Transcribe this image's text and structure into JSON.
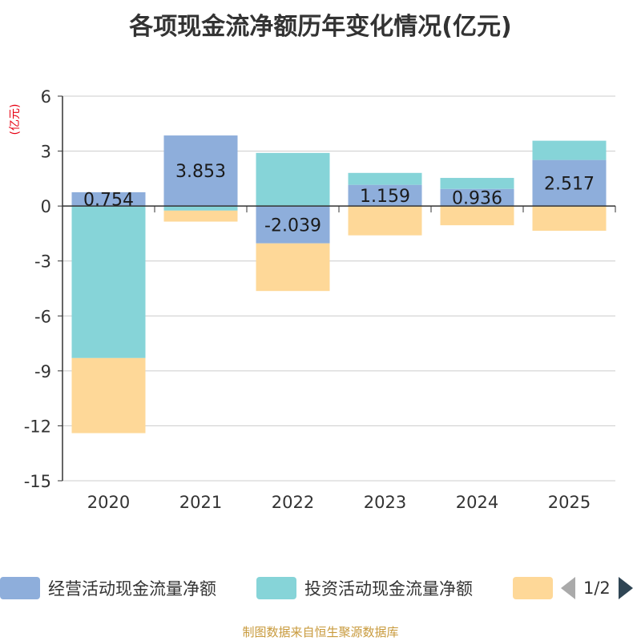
{
  "chart_data": {
    "type": "bar",
    "stacked": true,
    "title": "各项现金流净额历年变化情况(亿元)",
    "ylabel": "(亿元)",
    "xlabel": "",
    "categories": [
      "2020",
      "2021",
      "2022",
      "2023",
      "2024",
      "2025"
    ],
    "ylim": [
      -15,
      6
    ],
    "yticks": [
      6,
      3,
      0,
      -3,
      -6,
      -9,
      -12,
      -15
    ],
    "grid": true,
    "series": [
      {
        "name": "经营活动现金流量净额",
        "color": "#8eaedb",
        "values": [
          0.754,
          3.853,
          -2.039,
          1.159,
          0.936,
          2.517
        ],
        "show_labels": true
      },
      {
        "name": "投资活动现金流量净额",
        "color": "#86d4d8",
        "values": [
          -8.3,
          -0.25,
          2.9,
          0.65,
          0.6,
          1.05
        ],
        "show_labels": false
      },
      {
        "name": "",
        "color": "#fed898",
        "values": [
          -4.1,
          -0.6,
          -2.6,
          -1.6,
          -1.05,
          -1.35
        ],
        "show_labels": false
      }
    ]
  },
  "legend": {
    "page_indicator": "1/2"
  },
  "source": "制图数据来自恒生聚源数据库"
}
